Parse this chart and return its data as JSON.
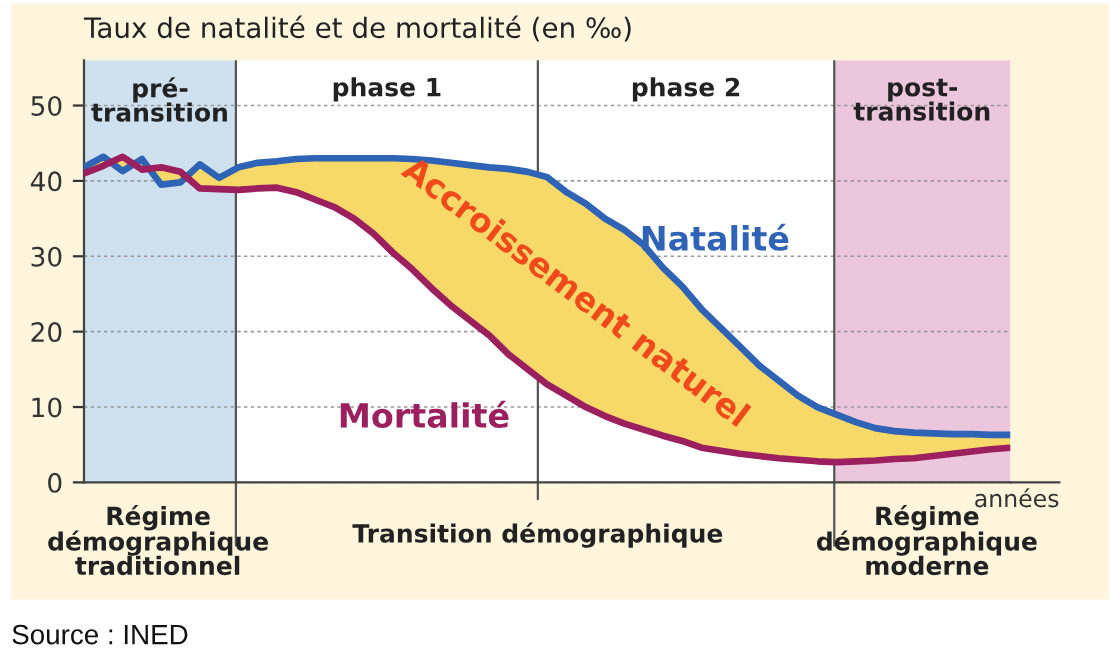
{
  "chart_data": {
    "type": "line",
    "title": "Taux de natalité et de mortalité (en ‰)",
    "xlabel": "années",
    "categories": [
      null,
      null,
      null,
      null,
      null,
      null,
      null,
      null,
      null,
      null,
      null,
      null,
      null,
      null,
      null,
      null,
      null,
      null,
      null,
      null,
      null,
      null,
      null,
      null,
      null,
      null,
      null,
      null,
      null,
      null,
      null,
      null,
      null,
      null,
      null,
      null,
      null,
      null,
      null,
      null,
      null,
      null,
      null,
      null,
      null,
      null,
      null,
      null,
      null
    ],
    "ylim": [
      0,
      56
    ],
    "yticks": [
      0,
      10,
      20,
      30,
      40,
      50
    ],
    "tick_labels": "y",
    "grid": "y",
    "legend": false,
    "line_style": "solid",
    "marker": "none",
    "series": [
      {
        "name": "Natalité",
        "color": "#2f63b5",
        "values": [
          41.8,
          43.2,
          41.3,
          42.9,
          39.5,
          39.8,
          42.2,
          40.4,
          41.8,
          42.4,
          42.6,
          42.9,
          43,
          43,
          43,
          43,
          43,
          42.9,
          42.7,
          42.4,
          42.1,
          41.8,
          41.6,
          41.2,
          40.5,
          38.5,
          37,
          35,
          33.5,
          31.5,
          28.5,
          26,
          23,
          20.5,
          18,
          15.5,
          13.5,
          11.5,
          10,
          9,
          8,
          7.2,
          6.8,
          6.6,
          6.5,
          6.4,
          6.4,
          6.3,
          6.3
        ]
      },
      {
        "name": "Mortalité",
        "color": "#9c1f5e",
        "values": [
          41,
          42,
          43.2,
          41.5,
          41.8,
          41.2,
          39,
          38.9,
          38.8,
          39,
          39.1,
          38.5,
          37.5,
          36.5,
          35,
          33,
          30.5,
          28.3,
          25.8,
          23.5,
          21.5,
          19.5,
          17,
          15,
          13,
          11.5,
          10,
          8.8,
          7.8,
          7,
          6.2,
          5.5,
          4.6,
          4.2,
          3.8,
          3.5,
          3.2,
          3,
          2.8,
          2.7,
          2.8,
          2.9,
          3.1,
          3.2,
          3.5,
          3.8,
          4.1,
          4.4,
          4.6
        ]
      }
    ],
    "annotations": [
      "Accroissement naturel",
      "pré-\ntransition",
      "phase 1",
      "phase 2",
      "post-\ntransition",
      "Régime\ndémographique\ntraditionnel",
      "Transition démographique",
      "Régime\ndémographique\nmoderne",
      "Source : INED"
    ]
  }
}
